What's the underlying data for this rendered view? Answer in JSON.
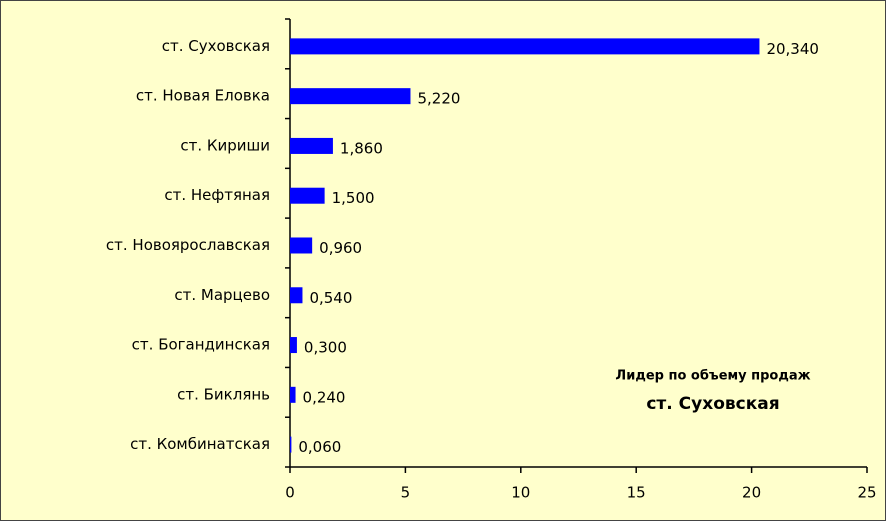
{
  "chart_data": {
    "type": "bar",
    "orientation": "horizontal",
    "categories": [
      "ст. Суховская",
      "ст. Новая Еловка",
      "ст. Кириши",
      "ст. Нефтяная",
      "ст. Новоярославская",
      "ст. Марцево",
      "ст. Богандинская",
      "ст. Биклянь",
      "ст. Комбинатская"
    ],
    "values": [
      20.34,
      5.22,
      1.86,
      1.5,
      0.96,
      0.54,
      0.3,
      0.24,
      0.06
    ],
    "value_labels": [
      "20,340",
      "5,220",
      "1,860",
      "1,500",
      "0,960",
      "0,540",
      "0,300",
      "0,240",
      "0,060"
    ],
    "color": "#0000ff",
    "xlim": [
      0,
      25
    ],
    "xticks": [
      0,
      5,
      10,
      15,
      20,
      25
    ],
    "annotations": [
      "Лидер по объему продаж",
      "ст. Суховская"
    ]
  }
}
